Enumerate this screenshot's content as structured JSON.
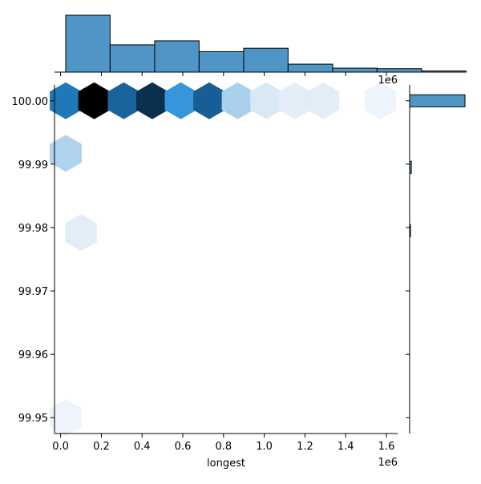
{
  "chart_data": {
    "type": "hexbin-joint",
    "xlabel": "longest",
    "ylabel": "",
    "x_offset_label": "1e6",
    "top_offset_label": "1e6",
    "xlim": [
      -0.03,
      1.655
    ],
    "ylim": [
      99.9475,
      100.0025
    ],
    "x_ticks": [
      0.0,
      0.2,
      0.4,
      0.6,
      0.8,
      1.0,
      1.2,
      1.4,
      1.6
    ],
    "x_tick_labels": [
      "0.0",
      "0.2",
      "0.4",
      "0.6",
      "0.8",
      "1.0",
      "1.2",
      "1.4",
      "1.6"
    ],
    "y_ticks": [
      100.0,
      99.99,
      99.98,
      99.97,
      99.96,
      99.95
    ],
    "y_tick_labels": [
      "100.00",
      "99.99",
      "99.98",
      "99.97",
      "99.96",
      "99.95"
    ],
    "hexbins": [
      {
        "x": 0.025,
        "y": 100.0,
        "intensity": 0.62
      },
      {
        "x": 0.165,
        "y": 100.0,
        "intensity": 1.0
      },
      {
        "x": 0.31,
        "y": 100.0,
        "intensity": 0.72
      },
      {
        "x": 0.45,
        "y": 100.0,
        "intensity": 0.9
      },
      {
        "x": 0.59,
        "y": 100.0,
        "intensity": 0.5
      },
      {
        "x": 0.73,
        "y": 100.0,
        "intensity": 0.75
      },
      {
        "x": 0.87,
        "y": 100.0,
        "intensity": 0.3
      },
      {
        "x": 1.01,
        "y": 100.0,
        "intensity": 0.12
      },
      {
        "x": 1.15,
        "y": 100.0,
        "intensity": 0.08
      },
      {
        "x": 1.29,
        "y": 100.0,
        "intensity": 0.08
      },
      {
        "x": 1.57,
        "y": 100.0,
        "intensity": 0.03
      },
      {
        "x": 0.025,
        "y": 99.9917,
        "intensity": 0.28
      },
      {
        "x": 0.1,
        "y": 99.9792,
        "intensity": 0.08
      },
      {
        "x": 0.025,
        "y": 99.95,
        "intensity": 0.03
      }
    ],
    "top_histogram": {
      "bin_edges": [
        0.025,
        0.243,
        0.462,
        0.68,
        0.899,
        1.117,
        1.336,
        1.554,
        1.773,
        1.991,
        2.21
      ],
      "counts": [
        100,
        48,
        55,
        36,
        42,
        14,
        7,
        6,
        2,
        2
      ]
    },
    "right_histogram": {
      "bars": [
        {
          "y": 100.0,
          "count": 100
        },
        {
          "y": 99.9895,
          "count": 3
        },
        {
          "y": 99.9795,
          "count": 1
        }
      ]
    },
    "colors": {
      "light": "#f3f8fd",
      "dark": "#000000",
      "hist_fill": "#4f95c6",
      "hist_edge": "#000000"
    }
  }
}
